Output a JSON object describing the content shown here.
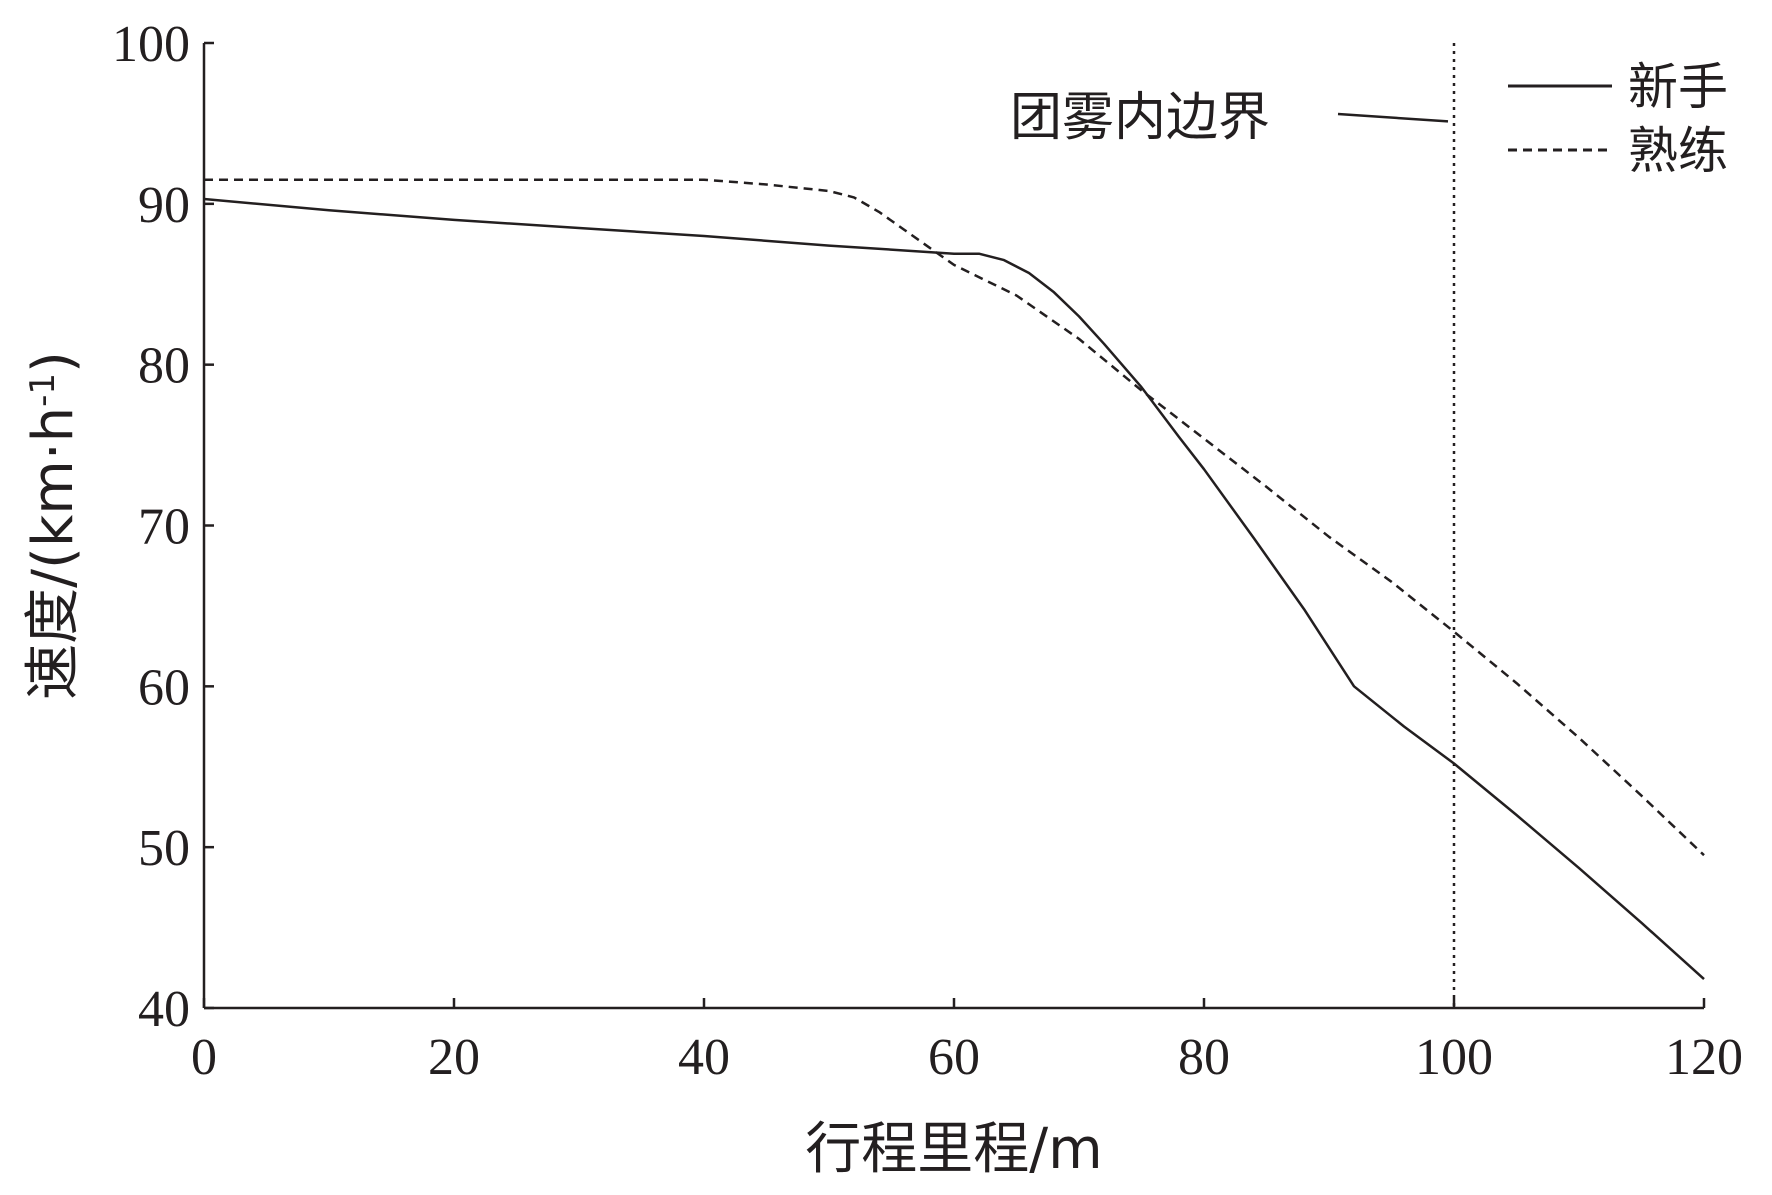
{
  "chart_data": {
    "type": "line",
    "title": "",
    "xlabel": "行程里程/m",
    "ylabel": "速度/(km·h",
    "ylabel_sup": "-1",
    "ylabel_tail": ")",
    "xlim": [
      0,
      120
    ],
    "ylim": [
      40,
      100
    ],
    "xticks": [
      0,
      20,
      40,
      60,
      80,
      100,
      120
    ],
    "yticks": [
      40,
      50,
      60,
      70,
      80,
      90,
      100
    ],
    "grid": false,
    "legend_position": "top-right",
    "series": [
      {
        "name": "新手",
        "style": "solid",
        "color": "#231f20",
        "points": [
          [
            0,
            90.3
          ],
          [
            10,
            89.6
          ],
          [
            20,
            89
          ],
          [
            30,
            88.5
          ],
          [
            40,
            88
          ],
          [
            50,
            87.4
          ],
          [
            60,
            86.9
          ],
          [
            62,
            86.9
          ],
          [
            64,
            86.5
          ],
          [
            66,
            85.7
          ],
          [
            68,
            84.5
          ],
          [
            70,
            83
          ],
          [
            72,
            81.3
          ],
          [
            75,
            78.6
          ],
          [
            78,
            75.5
          ],
          [
            80,
            73.5
          ],
          [
            84,
            69.2
          ],
          [
            88,
            64.8
          ],
          [
            92,
            60
          ],
          [
            96,
            57.5
          ],
          [
            100,
            55.2
          ],
          [
            105,
            52
          ],
          [
            110,
            48.7
          ],
          [
            115,
            45.3
          ],
          [
            120,
            41.8
          ]
        ]
      },
      {
        "name": "熟练",
        "style": "dashed",
        "color": "#231f20",
        "points": [
          [
            0,
            91.5
          ],
          [
            20,
            91.5
          ],
          [
            40,
            91.5
          ],
          [
            45,
            91.2
          ],
          [
            50,
            90.8
          ],
          [
            52,
            90.4
          ],
          [
            54,
            89.5
          ],
          [
            56,
            88.4
          ],
          [
            58,
            87.3
          ],
          [
            60,
            86.2
          ],
          [
            65,
            84.3
          ],
          [
            70,
            81.6
          ],
          [
            75,
            78.4
          ],
          [
            80,
            75.4
          ],
          [
            85,
            72.4
          ],
          [
            90,
            69.3
          ],
          [
            95,
            66.5
          ],
          [
            100,
            63.4
          ],
          [
            105,
            60.2
          ],
          [
            110,
            56.8
          ],
          [
            115,
            53.2
          ],
          [
            120,
            49.5
          ]
        ]
      }
    ],
    "reference_line": {
      "x": 100,
      "style": "dotted"
    },
    "annotations": [
      {
        "text": "团雾内边界",
        "target_x": 100,
        "target_y": 95
      }
    ]
  }
}
